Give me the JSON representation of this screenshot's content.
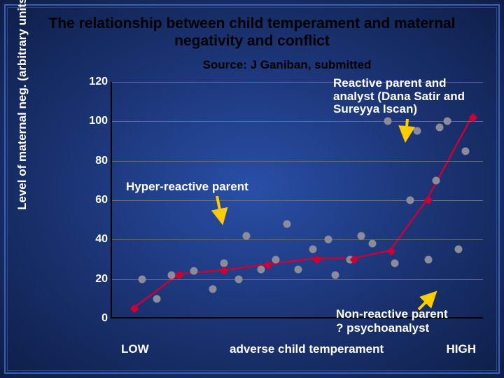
{
  "title": "The relationship between child temperament and maternal negativity and conflict",
  "source": "Source: J Ganiban, submitted",
  "ylabel": "Level of maternal neg. (arbitrary units)",
  "xaxis": {
    "low": "LOW",
    "mid": "adverse child temperament",
    "high": "HIGH"
  },
  "chart": {
    "type": "scatter+line",
    "ylim": [
      0,
      120
    ],
    "ytick_step": 20,
    "yticks": [
      0,
      20,
      40,
      60,
      80,
      100,
      120
    ],
    "background": "transparent",
    "grid_color": "#666b80",
    "axis_color": "#000000",
    "scatter_color": "#8b8b9a",
    "line_color": "#cc0033",
    "diamond_color": "#cc0033",
    "line_width": 2.5,
    "marker_size": 11,
    "data_points": [
      {
        "x": 0.08,
        "y": 20
      },
      {
        "x": 0.12,
        "y": 10
      },
      {
        "x": 0.16,
        "y": 22
      },
      {
        "x": 0.22,
        "y": 24
      },
      {
        "x": 0.27,
        "y": 15
      },
      {
        "x": 0.3,
        "y": 28
      },
      {
        "x": 0.34,
        "y": 20
      },
      {
        "x": 0.36,
        "y": 42
      },
      {
        "x": 0.4,
        "y": 25
      },
      {
        "x": 0.44,
        "y": 30
      },
      {
        "x": 0.47,
        "y": 48
      },
      {
        "x": 0.5,
        "y": 25
      },
      {
        "x": 0.54,
        "y": 35
      },
      {
        "x": 0.58,
        "y": 40
      },
      {
        "x": 0.6,
        "y": 22
      },
      {
        "x": 0.64,
        "y": 30
      },
      {
        "x": 0.67,
        "y": 42
      },
      {
        "x": 0.7,
        "y": 38
      },
      {
        "x": 0.74,
        "y": 100
      },
      {
        "x": 0.76,
        "y": 28
      },
      {
        "x": 0.8,
        "y": 60
      },
      {
        "x": 0.82,
        "y": 95
      },
      {
        "x": 0.85,
        "y": 30
      },
      {
        "x": 0.87,
        "y": 70
      },
      {
        "x": 0.88,
        "y": 97
      },
      {
        "x": 0.9,
        "y": 100
      },
      {
        "x": 0.93,
        "y": 35
      },
      {
        "x": 0.95,
        "y": 85
      }
    ],
    "trend_points": [
      {
        "x": 0.06,
        "y": 5
      },
      {
        "x": 0.18,
        "y": 22
      },
      {
        "x": 0.3,
        "y": 24
      },
      {
        "x": 0.42,
        "y": 27
      },
      {
        "x": 0.55,
        "y": 30
      },
      {
        "x": 0.65,
        "y": 30
      },
      {
        "x": 0.75,
        "y": 34
      },
      {
        "x": 0.85,
        "y": 60
      },
      {
        "x": 0.97,
        "y": 102
      }
    ]
  },
  "annotations": {
    "reactive": "Reactive parent and analyst (Dana Satir and Sureyya Iscan)",
    "hyper": "Hyper-reactive parent",
    "nonreactive1": "Non-reactive parent",
    "nonreactive2": "? psychoanalyst"
  },
  "arrow_color": "#ffcc00"
}
